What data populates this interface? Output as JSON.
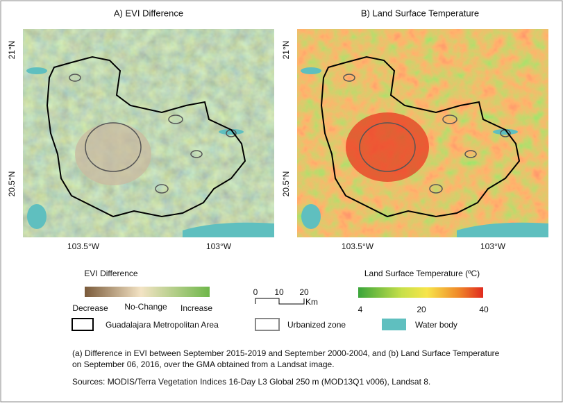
{
  "panels": [
    {
      "title": "A) EVI Difference",
      "lat_labels": [
        "21°N",
        "20.5°N"
      ],
      "lon_labels": [
        "103.5°W",
        "103°W"
      ]
    },
    {
      "title": "B) Land Surface Temperature",
      "lat_labels": [
        "21°N",
        "20.5°N"
      ],
      "lon_labels": [
        "103.5°W",
        "103°W"
      ]
    }
  ],
  "evi_legend": {
    "title": "EVI Difference",
    "labels": [
      "Decrease",
      "No-Change",
      "Increase"
    ]
  },
  "scale_bar": {
    "ticks": [
      0,
      10,
      20
    ],
    "unit": "Km"
  },
  "lst_legend": {
    "title": "Land Surface Temperature (ºC)",
    "ticks": [
      4,
      20,
      40
    ]
  },
  "legend_items": [
    "Guadalajara Metropolitan Area",
    "Urbanized zone",
    "Water body"
  ],
  "caption": [
    "(a) Difference in EVI between September 2015-2019 and September 2000-2004, and (b) Land Surface Temperature",
    "on September 06, 2016, over the GMA obtained from a Landsat image."
  ],
  "sources": "Sources: MODIS/Terra Vegetation Indices 16-Day L3 Global 250 m (MOD13Q1 v006), Landsat 8."
}
